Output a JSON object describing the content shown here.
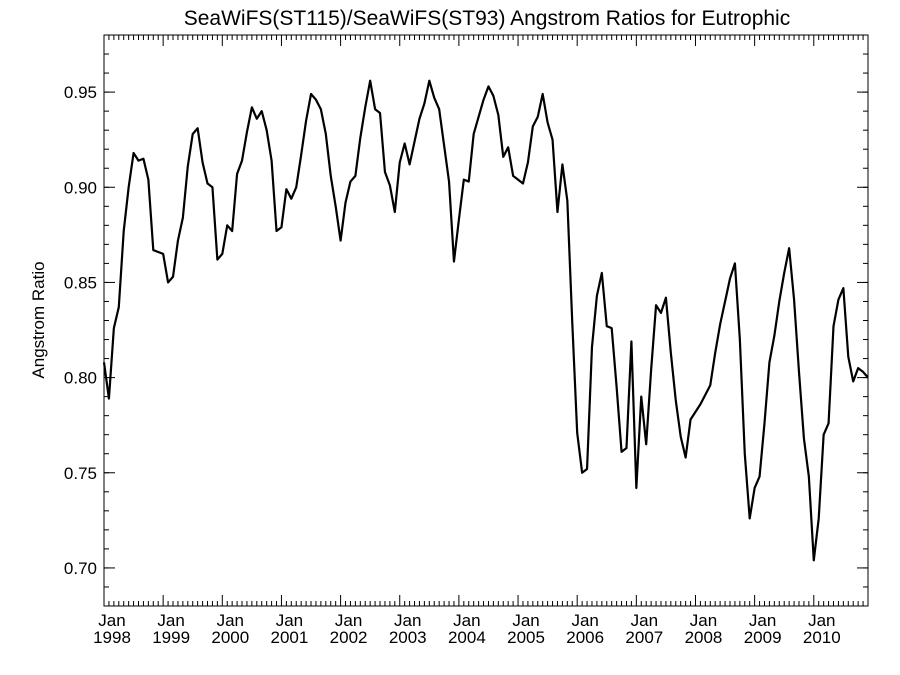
{
  "chart_data": {
    "type": "line",
    "title": "SeaWiFS(ST115)/SeaWiFS(ST93)  Angstrom Ratios for Eutrophic",
    "xlabel": "",
    "ylabel": "Angstrom Ratio",
    "xlim": [
      "1998-01",
      "2010-12"
    ],
    "ylim": [
      0.68,
      0.98
    ],
    "grid": false,
    "y_ticks": [
      {
        "value": 0.7,
        "label": "0.70"
      },
      {
        "value": 0.75,
        "label": "0.75"
      },
      {
        "value": 0.8,
        "label": "0.80"
      },
      {
        "value": 0.85,
        "label": "0.85"
      },
      {
        "value": 0.9,
        "label": "0.90"
      },
      {
        "value": 0.95,
        "label": "0.95"
      }
    ],
    "x_ticks": [
      {
        "date": "1998-01",
        "month": "Jan",
        "year": "1998"
      },
      {
        "date": "1999-01",
        "month": "Jan",
        "year": "1999"
      },
      {
        "date": "2000-01",
        "month": "Jan",
        "year": "2000"
      },
      {
        "date": "2001-01",
        "month": "Jan",
        "year": "2001"
      },
      {
        "date": "2002-01",
        "month": "Jan",
        "year": "2002"
      },
      {
        "date": "2003-01",
        "month": "Jan",
        "year": "2003"
      },
      {
        "date": "2004-01",
        "month": "Jan",
        "year": "2004"
      },
      {
        "date": "2005-01",
        "month": "Jan",
        "year": "2005"
      },
      {
        "date": "2006-01",
        "month": "Jan",
        "year": "2006"
      },
      {
        "date": "2007-01",
        "month": "Jan",
        "year": "2007"
      },
      {
        "date": "2008-01",
        "month": "Jan",
        "year": "2008"
      },
      {
        "date": "2009-01",
        "month": "Jan",
        "year": "2009"
      },
      {
        "date": "2010-01",
        "month": "Jan",
        "year": "2010"
      }
    ],
    "series": [
      {
        "color": "#000000",
        "x": [
          "1998-01",
          "1998-02",
          "1998-03",
          "1998-04",
          "1998-05",
          "1998-06",
          "1998-07",
          "1998-08",
          "1998-09",
          "1998-10",
          "1998-11",
          "1998-12",
          "1999-01",
          "1999-02",
          "1999-03",
          "1999-04",
          "1999-05",
          "1999-06",
          "1999-07",
          "1999-08",
          "1999-09",
          "1999-10",
          "1999-11",
          "1999-12",
          "2000-01",
          "2000-02",
          "2000-03",
          "2000-04",
          "2000-05",
          "2000-06",
          "2000-07",
          "2000-08",
          "2000-09",
          "2000-10",
          "2000-11",
          "2000-12",
          "2001-01",
          "2001-02",
          "2001-03",
          "2001-04",
          "2001-05",
          "2001-06",
          "2001-07",
          "2001-08",
          "2001-09",
          "2001-10",
          "2001-11",
          "2001-12",
          "2002-01",
          "2002-02",
          "2002-03",
          "2002-04",
          "2002-05",
          "2002-06",
          "2002-07",
          "2002-08",
          "2002-09",
          "2002-10",
          "2002-11",
          "2002-12",
          "2003-01",
          "2003-02",
          "2003-03",
          "2003-04",
          "2003-05",
          "2003-06",
          "2003-07",
          "2003-08",
          "2003-09",
          "2003-10",
          "2003-11",
          "2003-12",
          "2004-01",
          "2004-02",
          "2004-03",
          "2004-04",
          "2004-05",
          "2004-06",
          "2004-07",
          "2004-08",
          "2004-09",
          "2004-10",
          "2004-11",
          "2004-12",
          "2005-01",
          "2005-02",
          "2005-03",
          "2005-04",
          "2005-05",
          "2005-06",
          "2005-07",
          "2005-08",
          "2005-09",
          "2005-10",
          "2005-11",
          "2005-12",
          "2006-01",
          "2006-02",
          "2006-03",
          "2006-04",
          "2006-05",
          "2006-06",
          "2006-07",
          "2006-08",
          "2006-09",
          "2006-10",
          "2006-11",
          "2006-12",
          "2007-01",
          "2007-02",
          "2007-03",
          "2007-04",
          "2007-05",
          "2007-06",
          "2007-07",
          "2007-08",
          "2007-09",
          "2007-10",
          "2007-11",
          "2007-12",
          "2008-01",
          "2008-02",
          "2008-03",
          "2008-04",
          "2008-05",
          "2008-06",
          "2008-07",
          "2008-08",
          "2008-09",
          "2008-10",
          "2008-11",
          "2008-12",
          "2009-01",
          "2009-02",
          "2009-03",
          "2009-04",
          "2009-05",
          "2009-06",
          "2009-07",
          "2009-08",
          "2009-09",
          "2009-10",
          "2009-11",
          "2009-12",
          "2010-01",
          "2010-02",
          "2010-03",
          "2010-04",
          "2010-05",
          "2010-06",
          "2010-07",
          "2010-08",
          "2010-09",
          "2010-10",
          "2010-11",
          "2010-12"
        ],
        "values": [
          0.808,
          0.789,
          0.826,
          0.837,
          0.877,
          0.9,
          0.918,
          0.914,
          0.915,
          0.904,
          0.867,
          0.866,
          0.865,
          0.85,
          0.853,
          0.872,
          0.884,
          0.911,
          0.928,
          0.931,
          0.913,
          0.902,
          0.9,
          0.862,
          0.865,
          0.88,
          0.877,
          0.907,
          0.914,
          0.929,
          0.942,
          0.936,
          0.94,
          0.93,
          0.914,
          0.877,
          0.879,
          0.899,
          0.894,
          0.9,
          0.917,
          0.935,
          0.949,
          0.946,
          0.941,
          0.928,
          0.906,
          0.89,
          0.872,
          0.892,
          0.903,
          0.906,
          0.926,
          0.942,
          0.956,
          0.941,
          0.939,
          0.908,
          0.901,
          0.887,
          0.913,
          0.923,
          0.912,
          0.924,
          0.936,
          0.944,
          0.956,
          0.947,
          0.941,
          0.922,
          0.903,
          0.861,
          0.883,
          0.904,
          0.903,
          0.928,
          0.937,
          0.946,
          0.953,
          0.948,
          0.938,
          0.916,
          0.921,
          0.906,
          0.904,
          0.902,
          0.913,
          0.932,
          0.937,
          0.949,
          0.934,
          0.925,
          0.887,
          0.912,
          0.893,
          0.829,
          0.771,
          0.75,
          0.752,
          0.816,
          0.843,
          0.855,
          0.827,
          0.826,
          0.795,
          0.761,
          0.763,
          0.819,
          0.742,
          0.79,
          0.765,
          0.804,
          0.838,
          0.834,
          0.842,
          0.813,
          0.788,
          0.769,
          0.758,
          0.778,
          0.782,
          0.786,
          0.791,
          0.796,
          0.813,
          0.828,
          0.84,
          0.852,
          0.86,
          0.82,
          0.76,
          0.726,
          0.742,
          0.748,
          0.776,
          0.808,
          0.822,
          0.84,
          0.855,
          0.868,
          0.841,
          0.803,
          0.768,
          0.748,
          0.704,
          0.726,
          0.77,
          0.776,
          0.827,
          0.841,
          0.847,
          0.811,
          0.798,
          0.805,
          0.803,
          0.8
        ]
      }
    ]
  }
}
